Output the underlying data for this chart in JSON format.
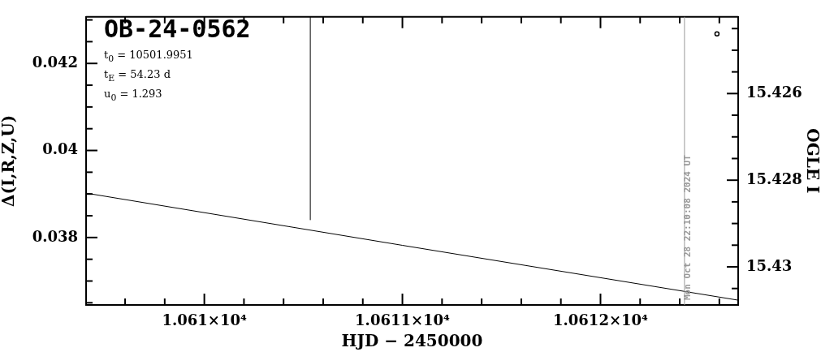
{
  "chart_data": {
    "type": "line",
    "title": "OB-24-0562",
    "xlabel": "HJD − 2450000",
    "ylabel": "Δ(I,R,Z,U)",
    "y2label": "OGLE I",
    "annotations": [
      "t$_{0}$ = 10501.9951",
      "t$_{E}$ = 54.23 d",
      "u$_{0}$ = 1.293",
      "Mon Oct 28 22:10:08 2024 UT"
    ],
    "series": [
      {
        "color": "#000000",
        "x": [
          10609.403,
          10611,
          10612.695
        ],
        "values": [
          0.03902,
          0.03782,
          0.03656
        ]
      },
      {
        "color": "#000000",
        "x": [
          10610.535,
          10610.535
        ],
        "values": [
          0.0384,
          0.04307
        ]
      },
      {
        "type": "scatter",
        "axis": "y2",
        "marker": "circle",
        "color": "#000000",
        "x": [
          10612.588
        ],
        "values": [
          15.42462
        ]
      }
    ],
    "xlim": [
      10609.403,
      10612.695
    ],
    "xticks": [
      {
        "value": 10609.6,
        "label": null
      },
      {
        "value": 10609.8,
        "label": null
      },
      {
        "value": 10610,
        "label": "1.061×10⁴"
      },
      {
        "value": 10610.2,
        "label": null
      },
      {
        "value": 10610.4,
        "label": null
      },
      {
        "value": 10610.6,
        "label": null
      },
      {
        "value": 10610.8,
        "label": null
      },
      {
        "value": 10611,
        "label": "1.0611×10⁴"
      },
      {
        "value": 10611.2,
        "label": null
      },
      {
        "value": 10611.4,
        "label": null
      },
      {
        "value": 10611.6,
        "label": null
      },
      {
        "value": 10611.8,
        "label": null
      },
      {
        "value": 10612,
        "label": "1.0612×10⁴"
      },
      {
        "value": 10612.2,
        "label": null
      },
      {
        "value": 10612.4,
        "label": null
      },
      {
        "value": 10612.6,
        "label": null
      }
    ],
    "ylim": [
      0.03645,
      0.04307
    ],
    "yticks": [
      {
        "value": 0.0365,
        "label": null
      },
      {
        "value": 0.037,
        "label": null
      },
      {
        "value": 0.0375,
        "label": null
      },
      0.038,
      {
        "value": 0.0385,
        "label": null
      },
      {
        "value": 0.039,
        "label": null
      },
      {
        "value": 0.0395,
        "label": null
      },
      0.04,
      {
        "value": 0.0405,
        "label": null
      },
      {
        "value": 0.041,
        "label": null
      },
      {
        "value": 0.0415,
        "label": null
      },
      0.042,
      {
        "value": 0.0425,
        "label": null
      },
      {
        "value": 0.043,
        "label": null
      }
    ],
    "y2lim": [
      15.43088,
      15.42423
    ],
    "y2ticks": [
      {
        "value": 15.4245,
        "label": null
      },
      {
        "value": 15.425,
        "label": null
      },
      {
        "value": 15.4255,
        "label": null
      },
      15.426,
      {
        "value": 15.4265,
        "label": null
      },
      {
        "value": 15.427,
        "label": null
      },
      {
        "value": 15.4275,
        "label": null
      },
      15.428,
      {
        "value": 15.4285,
        "label": null
      },
      {
        "value": 15.429,
        "label": null
      },
      {
        "value": 15.4295,
        "label": null
      },
      15.43,
      {
        "value": 15.4305,
        "label": null
      }
    ],
    "ref_lines": [
      {
        "axis": "x",
        "value": 10612.424,
        "color": "#999999"
      }
    ],
    "grid": false,
    "legend": false
  }
}
